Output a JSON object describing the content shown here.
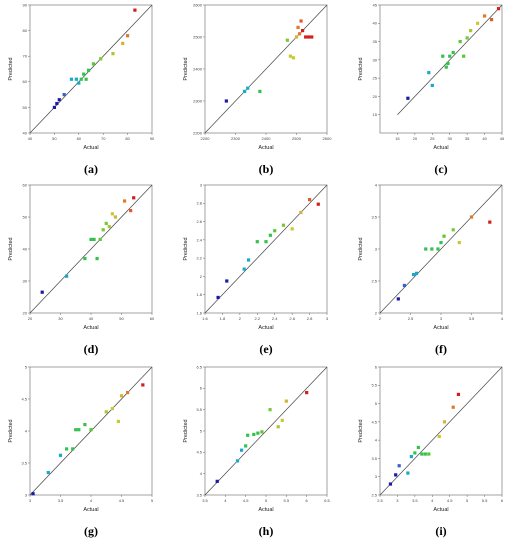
{
  "figure": {
    "panels_note": "",
    "colors": {
      "low": "#1a1aa6",
      "mid_low": "#18a8c8",
      "mid": "#33c24d",
      "mid_high": "#c8c832",
      "high": "#d21e1e"
    }
  },
  "chart_data": [
    {
      "panel_label": "(a)",
      "type": "scatter",
      "xlabel": "Actual",
      "ylabel": "Predicted",
      "xlim": [
        40,
        90
      ],
      "ylim": [
        40,
        90
      ],
      "xticks": [
        40,
        50,
        60,
        70,
        80,
        90
      ],
      "yticks": [
        40,
        50,
        60,
        70,
        80,
        90
      ],
      "tick_labels_x": [
        "40",
        "50",
        "60",
        "70",
        "80",
        "90"
      ],
      "tick_labels_y": [
        "40",
        "50",
        "60",
        "70",
        "80",
        "90"
      ],
      "fit_line": [
        [
          40,
          40
        ],
        [
          90,
          90
        ]
      ],
      "points": [
        {
          "x": 50,
          "y": 50,
          "c": "#1a1aa6"
        },
        {
          "x": 51,
          "y": 51.5,
          "c": "#1a1aa6"
        },
        {
          "x": 52,
          "y": 53,
          "c": "#1a1aa6"
        },
        {
          "x": 54,
          "y": 55,
          "c": "#3b5fc8"
        },
        {
          "x": 57,
          "y": 61,
          "c": "#18a8c8"
        },
        {
          "x": 59,
          "y": 61,
          "c": "#18a8c8"
        },
        {
          "x": 60,
          "y": 59.5,
          "c": "#18a8c8"
        },
        {
          "x": 61,
          "y": 61,
          "c": "#33c24d"
        },
        {
          "x": 62,
          "y": 63,
          "c": "#33c24d"
        },
        {
          "x": 63,
          "y": 61,
          "c": "#33c24d"
        },
        {
          "x": 64,
          "y": 64.5,
          "c": "#33c24d"
        },
        {
          "x": 66,
          "y": 67,
          "c": "#5ac832"
        },
        {
          "x": 69,
          "y": 69,
          "c": "#7ac832"
        },
        {
          "x": 74,
          "y": 71,
          "c": "#a8c832"
        },
        {
          "x": 78,
          "y": 75,
          "c": "#d2b432"
        },
        {
          "x": 80,
          "y": 78,
          "c": "#e07828"
        },
        {
          "x": 83,
          "y": 88,
          "c": "#d21e1e"
        }
      ]
    },
    {
      "panel_label": "(b)",
      "type": "scatter",
      "xlabel": "Actual",
      "ylabel": "Predicted",
      "xlim": [
        2200,
        2600
      ],
      "ylim": [
        2200,
        2600
      ],
      "xticks": [
        2200,
        2300,
        2400,
        2500,
        2600
      ],
      "yticks": [
        2200,
        2300,
        2400,
        2500,
        2600
      ],
      "tick_labels_x": [
        "2200",
        "2300",
        "2400",
        "2500",
        "2600"
      ],
      "tick_labels_y": [
        "2200",
        "2300",
        "2400",
        "2500",
        "2600"
      ],
      "fit_line": [
        [
          2200,
          2200
        ],
        [
          2600,
          2600
        ]
      ],
      "points": [
        {
          "x": 2270,
          "y": 2300,
          "c": "#1a1aa6"
        },
        {
          "x": 2330,
          "y": 2330,
          "c": "#18a8c8"
        },
        {
          "x": 2340,
          "y": 2340,
          "c": "#18a8c8"
        },
        {
          "x": 2380,
          "y": 2330,
          "c": "#33c24d"
        },
        {
          "x": 2470,
          "y": 2490,
          "c": "#7ac832"
        },
        {
          "x": 2480,
          "y": 2440,
          "c": "#c8c832"
        },
        {
          "x": 2490,
          "y": 2435,
          "c": "#c8c832"
        },
        {
          "x": 2500,
          "y": 2500,
          "c": "#d2b432"
        },
        {
          "x": 2505,
          "y": 2530,
          "c": "#e07828"
        },
        {
          "x": 2510,
          "y": 2510,
          "c": "#e07828"
        },
        {
          "x": 2515,
          "y": 2550,
          "c": "#e05a28"
        },
        {
          "x": 2520,
          "y": 2520,
          "c": "#d21e1e"
        },
        {
          "x": 2530,
          "y": 2500,
          "c": "#d21e1e"
        },
        {
          "x": 2540,
          "y": 2500,
          "c": "#d21e1e"
        },
        {
          "x": 2550,
          "y": 2500,
          "c": "#d21e1e"
        }
      ]
    },
    {
      "panel_label": "(c)",
      "type": "scatter",
      "xlabel": "Actual",
      "ylabel": "Predicted",
      "xlim": [
        10,
        45
      ],
      "ylim": [
        10,
        45
      ],
      "xticks": [
        15,
        20,
        25,
        30,
        35,
        40,
        45
      ],
      "yticks": [
        15,
        20,
        25,
        30,
        35,
        40,
        45
      ],
      "tick_labels_x": [
        "15",
        "20",
        "25",
        "30",
        "35",
        "40",
        "45"
      ],
      "tick_labels_y": [
        "15",
        "20",
        "25",
        "30",
        "35",
        "40",
        "45"
      ],
      "fit_line": [
        [
          15,
          15
        ],
        [
          45,
          45
        ]
      ],
      "points": [
        {
          "x": 18,
          "y": 19.5,
          "c": "#1a1aa6"
        },
        {
          "x": 24,
          "y": 26.5,
          "c": "#18a8c8"
        },
        {
          "x": 25,
          "y": 23,
          "c": "#18a8c8"
        },
        {
          "x": 28,
          "y": 31,
          "c": "#33c24d"
        },
        {
          "x": 29,
          "y": 28,
          "c": "#33c24d"
        },
        {
          "x": 29.5,
          "y": 29,
          "c": "#33c24d"
        },
        {
          "x": 30,
          "y": 31,
          "c": "#33c24d"
        },
        {
          "x": 31,
          "y": 32,
          "c": "#33c24d"
        },
        {
          "x": 33,
          "y": 35,
          "c": "#5ac832"
        },
        {
          "x": 34,
          "y": 31,
          "c": "#5ac832"
        },
        {
          "x": 35,
          "y": 36,
          "c": "#7ac832"
        },
        {
          "x": 36,
          "y": 38,
          "c": "#a8c832"
        },
        {
          "x": 38,
          "y": 40,
          "c": "#c8c832"
        },
        {
          "x": 40,
          "y": 42,
          "c": "#e07828"
        },
        {
          "x": 42,
          "y": 41,
          "c": "#e05a28"
        },
        {
          "x": 44,
          "y": 44,
          "c": "#d21e1e"
        }
      ]
    },
    {
      "panel_label": "(d)",
      "type": "scatter",
      "xlabel": "Actual",
      "ylabel": "Predicted",
      "xlim": [
        20,
        60
      ],
      "ylim": [
        20,
        60
      ],
      "xticks": [
        20,
        30,
        40,
        50,
        60
      ],
      "yticks": [
        20,
        30,
        40,
        50,
        60
      ],
      "tick_labels_x": [
        "20",
        "30",
        "40",
        "50",
        "60"
      ],
      "tick_labels_y": [
        "20",
        "30",
        "40",
        "50",
        "60"
      ],
      "fit_line": [
        [
          20,
          20
        ],
        [
          60,
          60
        ]
      ],
      "points": [
        {
          "x": 24,
          "y": 26.5,
          "c": "#1a1aa6"
        },
        {
          "x": 32,
          "y": 31.5,
          "c": "#18a8c8"
        },
        {
          "x": 38,
          "y": 37,
          "c": "#33c24d"
        },
        {
          "x": 40,
          "y": 43,
          "c": "#33c24d"
        },
        {
          "x": 41,
          "y": 43,
          "c": "#33c24d"
        },
        {
          "x": 42,
          "y": 37,
          "c": "#33c24d"
        },
        {
          "x": 43,
          "y": 43,
          "c": "#5ac832"
        },
        {
          "x": 44,
          "y": 46,
          "c": "#7ac832"
        },
        {
          "x": 45,
          "y": 48,
          "c": "#7ac832"
        },
        {
          "x": 46,
          "y": 47,
          "c": "#a8c832"
        },
        {
          "x": 47,
          "y": 51,
          "c": "#c8c832"
        },
        {
          "x": 48,
          "y": 50,
          "c": "#d2b432"
        },
        {
          "x": 51,
          "y": 55,
          "c": "#e07828"
        },
        {
          "x": 53,
          "y": 52,
          "c": "#e05a28"
        },
        {
          "x": 54,
          "y": 56,
          "c": "#d21e1e"
        }
      ]
    },
    {
      "panel_label": "(e)",
      "type": "scatter",
      "xlabel": "Actual",
      "ylabel": "Predicted",
      "xlim": [
        1.6,
        3.0
      ],
      "ylim": [
        1.6,
        3.0
      ],
      "xticks": [
        1.6,
        1.8,
        2.0,
        2.2,
        2.4,
        2.6,
        2.8,
        3.0
      ],
      "yticks": [
        1.6,
        1.8,
        2.0,
        2.2,
        2.4,
        2.6,
        2.8,
        3.0
      ],
      "tick_labels_x": [
        "1.6",
        "1.8",
        "2",
        "2.2",
        "2.4",
        "2.6",
        "2.8",
        "3"
      ],
      "tick_labels_y": [
        "1.6",
        "1.8",
        "2",
        "2.2",
        "2.4",
        "2.6",
        "2.8",
        "3"
      ],
      "fit_line": [
        [
          1.6,
          1.6
        ],
        [
          3.0,
          3.0
        ]
      ],
      "points": [
        {
          "x": 1.75,
          "y": 1.77,
          "c": "#1a1aa6"
        },
        {
          "x": 1.85,
          "y": 1.95,
          "c": "#1a1aa6"
        },
        {
          "x": 2.05,
          "y": 2.08,
          "c": "#18a8c8"
        },
        {
          "x": 2.1,
          "y": 2.18,
          "c": "#18a8c8"
        },
        {
          "x": 2.2,
          "y": 2.38,
          "c": "#33c24d"
        },
        {
          "x": 2.3,
          "y": 2.38,
          "c": "#33c24d"
        },
        {
          "x": 2.35,
          "y": 2.45,
          "c": "#33c24d"
        },
        {
          "x": 2.4,
          "y": 2.5,
          "c": "#5ac832"
        },
        {
          "x": 2.5,
          "y": 2.56,
          "c": "#7ac832"
        },
        {
          "x": 2.6,
          "y": 2.52,
          "c": "#c8c832"
        },
        {
          "x": 2.7,
          "y": 2.7,
          "c": "#d2b432"
        },
        {
          "x": 2.8,
          "y": 2.84,
          "c": "#e05a28"
        },
        {
          "x": 2.9,
          "y": 2.79,
          "c": "#d21e1e"
        }
      ]
    },
    {
      "panel_label": "(f)",
      "type": "scatter",
      "xlabel": "Actual",
      "ylabel": "Predicted",
      "xlim": [
        2,
        4
      ],
      "ylim": [
        2,
        4
      ],
      "xticks": [
        2,
        2.5,
        3,
        3.5,
        4
      ],
      "yticks": [
        2,
        2.5,
        3,
        3.5,
        4
      ],
      "tick_labels_x": [
        "2",
        "2.5",
        "3",
        "3.5",
        "4"
      ],
      "tick_labels_y": [
        "2",
        "2.5",
        "3",
        "3.5",
        "4"
      ],
      "fit_line": [
        [
          2,
          2
        ],
        [
          4,
          4
        ]
      ],
      "points": [
        {
          "x": 2.3,
          "y": 2.22,
          "c": "#1a1aa6"
        },
        {
          "x": 2.4,
          "y": 2.43,
          "c": "#3b5fc8"
        },
        {
          "x": 2.55,
          "y": 2.6,
          "c": "#18a8c8"
        },
        {
          "x": 2.6,
          "y": 2.62,
          "c": "#18a8c8"
        },
        {
          "x": 2.75,
          "y": 3.0,
          "c": "#33c24d"
        },
        {
          "x": 2.85,
          "y": 3.0,
          "c": "#33c24d"
        },
        {
          "x": 2.95,
          "y": 3.0,
          "c": "#33c24d"
        },
        {
          "x": 3.0,
          "y": 3.1,
          "c": "#33c24d"
        },
        {
          "x": 3.05,
          "y": 3.2,
          "c": "#5ac832"
        },
        {
          "x": 3.2,
          "y": 3.3,
          "c": "#7ac832"
        },
        {
          "x": 3.3,
          "y": 3.1,
          "c": "#c8c832"
        },
        {
          "x": 3.5,
          "y": 3.5,
          "c": "#e07828"
        },
        {
          "x": 3.8,
          "y": 3.42,
          "c": "#d21e1e"
        }
      ]
    },
    {
      "panel_label": "(g)",
      "type": "scatter",
      "xlabel": "Actual",
      "ylabel": "Predicted",
      "xlim": [
        3,
        5
      ],
      "ylim": [
        3,
        5
      ],
      "xticks": [
        3,
        3.5,
        4,
        4.5,
        5
      ],
      "yticks": [
        3,
        3.5,
        4,
        4.5,
        5
      ],
      "tick_labels_x": [
        "3",
        "3.5",
        "4",
        "4.5",
        "5"
      ],
      "tick_labels_y": [
        "3",
        "3.5",
        "4",
        "4.5",
        "5"
      ],
      "fit_line": [
        [
          3,
          3
        ],
        [
          5,
          5
        ]
      ],
      "points": [
        {
          "x": 3.05,
          "y": 3.02,
          "c": "#1a1aa6"
        },
        {
          "x": 3.3,
          "y": 3.35,
          "c": "#18a8c8"
        },
        {
          "x": 3.5,
          "y": 3.62,
          "c": "#18a8c8"
        },
        {
          "x": 3.6,
          "y": 3.72,
          "c": "#33c24d"
        },
        {
          "x": 3.7,
          "y": 3.72,
          "c": "#33c24d"
        },
        {
          "x": 3.75,
          "y": 4.02,
          "c": "#33c24d"
        },
        {
          "x": 3.8,
          "y": 4.02,
          "c": "#33c24d"
        },
        {
          "x": 3.9,
          "y": 4.1,
          "c": "#33c24d"
        },
        {
          "x": 4.0,
          "y": 4.02,
          "c": "#5ac832"
        },
        {
          "x": 4.25,
          "y": 4.3,
          "c": "#a8c832"
        },
        {
          "x": 4.35,
          "y": 4.35,
          "c": "#c8c832"
        },
        {
          "x": 4.45,
          "y": 4.15,
          "c": "#c8c832"
        },
        {
          "x": 4.5,
          "y": 4.55,
          "c": "#d2b432"
        },
        {
          "x": 4.6,
          "y": 4.6,
          "c": "#e07828"
        },
        {
          "x": 4.85,
          "y": 4.72,
          "c": "#d21e1e"
        }
      ]
    },
    {
      "panel_label": "(h)",
      "type": "scatter",
      "xlabel": "Actual",
      "ylabel": "Predicted",
      "xlim": [
        3.5,
        6.5
      ],
      "ylim": [
        3.5,
        6.5
      ],
      "xticks": [
        3.5,
        4,
        4.5,
        5,
        5.5,
        6,
        6.5
      ],
      "yticks": [
        3.5,
        4,
        4.5,
        5,
        5.5,
        6,
        6.5
      ],
      "tick_labels_x": [
        "3.5",
        "4",
        "4.5",
        "5",
        "5.5",
        "6",
        "6.5"
      ],
      "tick_labels_y": [
        "3.5",
        "4",
        "4.5",
        "5",
        "5.5",
        "6",
        "6.5"
      ],
      "fit_line": [
        [
          3.5,
          3.5
        ],
        [
          6.5,
          6.5
        ]
      ],
      "points": [
        {
          "x": 3.8,
          "y": 3.82,
          "c": "#1a1aa6"
        },
        {
          "x": 4.3,
          "y": 4.3,
          "c": "#18a8c8"
        },
        {
          "x": 4.4,
          "y": 4.55,
          "c": "#18a8c8"
        },
        {
          "x": 4.5,
          "y": 4.65,
          "c": "#33c24d"
        },
        {
          "x": 4.55,
          "y": 4.9,
          "c": "#33c24d"
        },
        {
          "x": 4.7,
          "y": 4.92,
          "c": "#33c24d"
        },
        {
          "x": 4.8,
          "y": 4.95,
          "c": "#33c24d"
        },
        {
          "x": 4.9,
          "y": 4.98,
          "c": "#5ac832"
        },
        {
          "x": 5.1,
          "y": 5.5,
          "c": "#7ac832"
        },
        {
          "x": 5.3,
          "y": 5.1,
          "c": "#a8c832"
        },
        {
          "x": 5.4,
          "y": 5.25,
          "c": "#c8c832"
        },
        {
          "x": 5.5,
          "y": 5.7,
          "c": "#d2b432"
        },
        {
          "x": 6.0,
          "y": 5.9,
          "c": "#d21e1e"
        }
      ]
    },
    {
      "panel_label": "(i)",
      "type": "scatter",
      "xlabel": "Actual",
      "ylabel": "Predicted",
      "xlim": [
        2.5,
        6
      ],
      "ylim": [
        2.5,
        6
      ],
      "xticks": [
        2.5,
        3,
        3.5,
        4,
        4.5,
        5,
        5.5,
        6
      ],
      "yticks": [
        2.5,
        3,
        3.5,
        4,
        4.5,
        5,
        5.5,
        6
      ],
      "tick_labels_x": [
        "2.5",
        "3",
        "3.5",
        "4",
        "4.5",
        "5",
        "5.5",
        "6"
      ],
      "tick_labels_y": [
        "2.5",
        "3",
        "3.5",
        "4",
        "4.5",
        "5",
        "5.5",
        "6"
      ],
      "fit_line": [
        [
          2.5,
          2.5
        ],
        [
          6,
          6
        ]
      ],
      "points": [
        {
          "x": 2.8,
          "y": 2.8,
          "c": "#1a1aa6"
        },
        {
          "x": 2.95,
          "y": 3.05,
          "c": "#1a1aa6"
        },
        {
          "x": 3.05,
          "y": 3.3,
          "c": "#3b5fc8"
        },
        {
          "x": 3.3,
          "y": 3.1,
          "c": "#18a8c8"
        },
        {
          "x": 3.4,
          "y": 3.55,
          "c": "#18a8c8"
        },
        {
          "x": 3.5,
          "y": 3.65,
          "c": "#33c24d"
        },
        {
          "x": 3.6,
          "y": 3.8,
          "c": "#33c24d"
        },
        {
          "x": 3.7,
          "y": 3.62,
          "c": "#33c24d"
        },
        {
          "x": 3.8,
          "y": 3.62,
          "c": "#33c24d"
        },
        {
          "x": 3.9,
          "y": 3.62,
          "c": "#5ac832"
        },
        {
          "x": 4.2,
          "y": 4.1,
          "c": "#c8c832"
        },
        {
          "x": 4.35,
          "y": 4.5,
          "c": "#d2b432"
        },
        {
          "x": 4.6,
          "y": 4.9,
          "c": "#e07828"
        },
        {
          "x": 4.75,
          "y": 5.25,
          "c": "#d21e1e"
        }
      ]
    }
  ]
}
